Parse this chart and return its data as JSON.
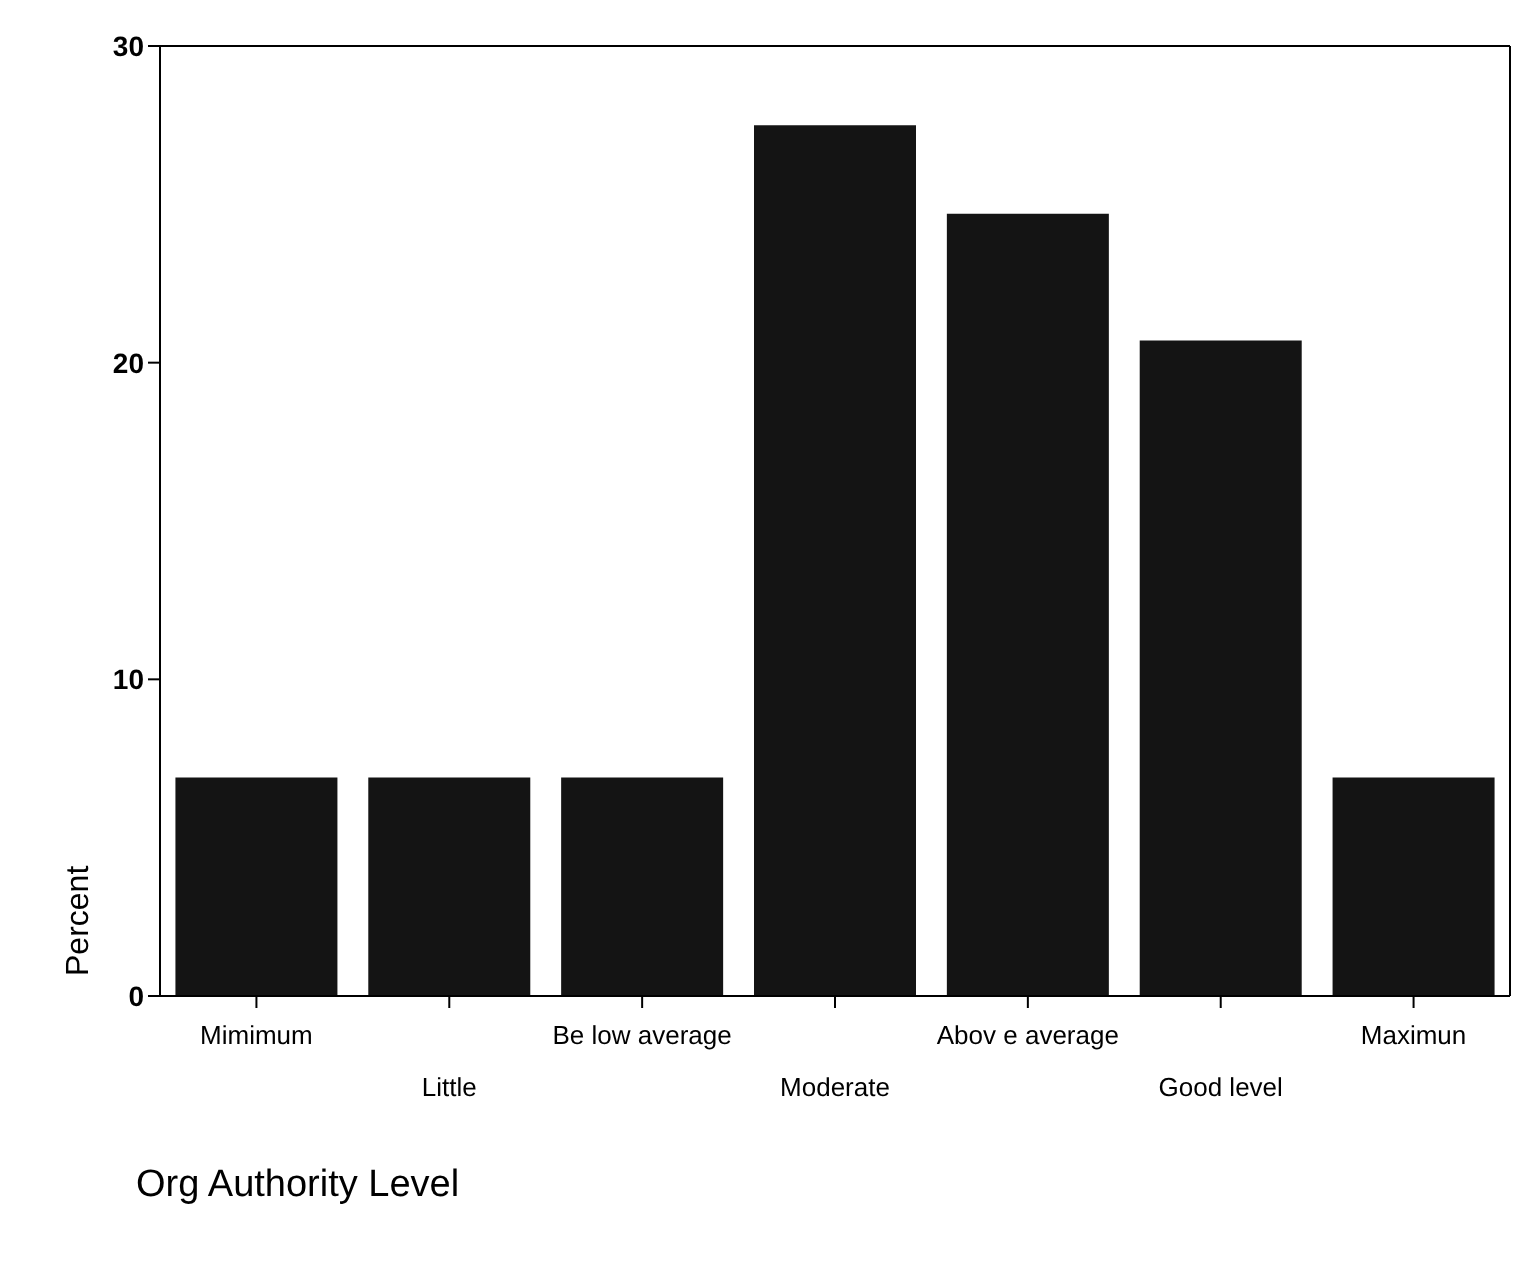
{
  "chart_data": {
    "type": "bar",
    "xlabel": "Org Authority Level",
    "ylabel": "Percent",
    "categories": [
      "Mimimum",
      "Little",
      "Be low average",
      "Moderate",
      "Abov e average",
      "Good level",
      "Maximun"
    ],
    "values": [
      6.9,
      6.9,
      6.9,
      27.5,
      24.7,
      20.7,
      6.9
    ],
    "color": "#141414",
    "ylim": [
      0,
      30
    ],
    "yticks": [
      0,
      10,
      20,
      30
    ],
    "grid": false,
    "legend": false
  }
}
